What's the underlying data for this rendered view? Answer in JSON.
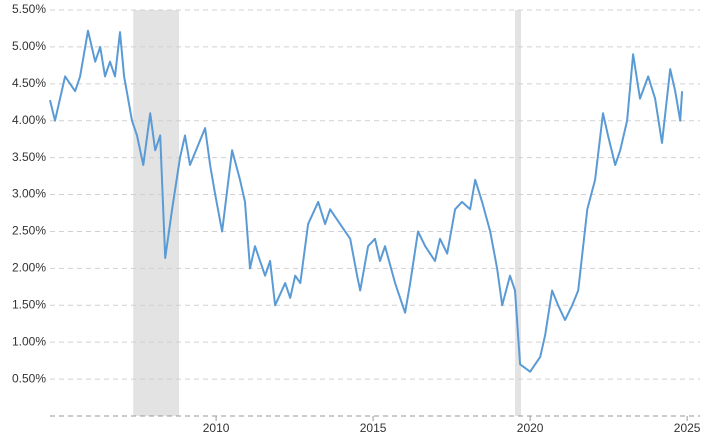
{
  "chart_data": {
    "type": "line",
    "color": "#5b9bd5",
    "shade_color": "#e3e3e3",
    "grid": true,
    "xlim": [
      2004.71,
      2025.41
    ],
    "ylim": [
      0,
      5.5
    ],
    "xticks": [
      2010,
      2015,
      2020,
      2025
    ],
    "yticks": [
      {
        "value": 0.5,
        "label": "0.50%"
      },
      {
        "value": 1,
        "label": "1.00%"
      },
      {
        "value": 1.5,
        "label": "1.50%"
      },
      {
        "value": 2,
        "label": "2.00%"
      },
      {
        "value": 2.5,
        "label": "2.50%"
      },
      {
        "value": 3,
        "label": "3.00%"
      },
      {
        "value": 3.5,
        "label": "3.50%"
      },
      {
        "value": 4,
        "label": "4.00%"
      },
      {
        "value": 4.5,
        "label": "4.50%"
      },
      {
        "value": 5,
        "label": "5.00%"
      },
      {
        "value": 5.5,
        "label": "5.50%"
      }
    ],
    "shaded": [
      [
        2007.36,
        2008.82
      ],
      [
        2019.52,
        2019.71
      ]
    ],
    "x": [
      2004.71,
      2004.87,
      2005.19,
      2005.51,
      2005.67,
      2005.92,
      2006.15,
      2006.31,
      2006.46,
      2006.62,
      2006.78,
      2006.94,
      2007.07,
      2007.32,
      2007.48,
      2007.68,
      2007.9,
      2008.06,
      2008.22,
      2008.38,
      2008.6,
      2008.85,
      2009.01,
      2009.17,
      2009.65,
      2009.81,
      2009.97,
      2010.19,
      2010.51,
      2010.76,
      2010.92,
      2011.08,
      2011.24,
      2011.56,
      2011.72,
      2011.88,
      2012.2,
      2012.36,
      2012.52,
      2012.68,
      2012.93,
      2013.25,
      2013.47,
      2013.63,
      2013.95,
      2014.27,
      2014.49,
      2014.59,
      2014.84,
      2015.06,
      2015.22,
      2015.38,
      2015.7,
      2015.86,
      2016.02,
      2016.18,
      2016.43,
      2016.66,
      2016.97,
      2017.13,
      2017.36,
      2017.61,
      2017.83,
      2018.09,
      2018.25,
      2018.47,
      2018.73,
      2018.95,
      2019.11,
      2019.36,
      2019.52,
      2019.68,
      2020.0,
      2020.32,
      2020.48,
      2020.7,
      2020.89,
      2021.11,
      2021.34,
      2021.53,
      2021.82,
      2022.07,
      2022.32,
      2022.48,
      2022.71,
      2022.87,
      2023.09,
      2023.28,
      2023.5,
      2023.76,
      2023.98,
      2024.2,
      2024.46,
      2024.62,
      2024.78,
      2024.84
    ],
    "values": [
      4.28,
      4.0,
      4.6,
      4.4,
      4.6,
      5.22,
      4.8,
      5.0,
      4.6,
      4.8,
      4.6,
      5.2,
      4.6,
      4.0,
      3.8,
      3.4,
      4.1,
      3.6,
      3.8,
      2.14,
      2.8,
      3.5,
      3.8,
      3.4,
      3.9,
      3.4,
      3.0,
      2.5,
      3.6,
      3.2,
      2.9,
      2.0,
      2.3,
      1.9,
      2.1,
      1.5,
      1.8,
      1.6,
      1.9,
      1.8,
      2.6,
      2.9,
      2.6,
      2.8,
      2.6,
      2.4,
      1.9,
      1.7,
      2.3,
      2.4,
      2.1,
      2.3,
      1.8,
      1.6,
      1.4,
      1.8,
      2.5,
      2.3,
      2.1,
      2.4,
      2.2,
      2.8,
      2.9,
      2.8,
      3.2,
      2.9,
      2.5,
      2.0,
      1.5,
      1.9,
      1.7,
      0.7,
      0.6,
      0.8,
      1.1,
      1.7,
      1.5,
      1.3,
      1.5,
      1.7,
      2.8,
      3.2,
      4.1,
      3.8,
      3.4,
      3.6,
      4.0,
      4.9,
      4.3,
      4.6,
      4.3,
      3.7,
      4.7,
      4.4,
      4.0,
      4.4
    ]
  }
}
